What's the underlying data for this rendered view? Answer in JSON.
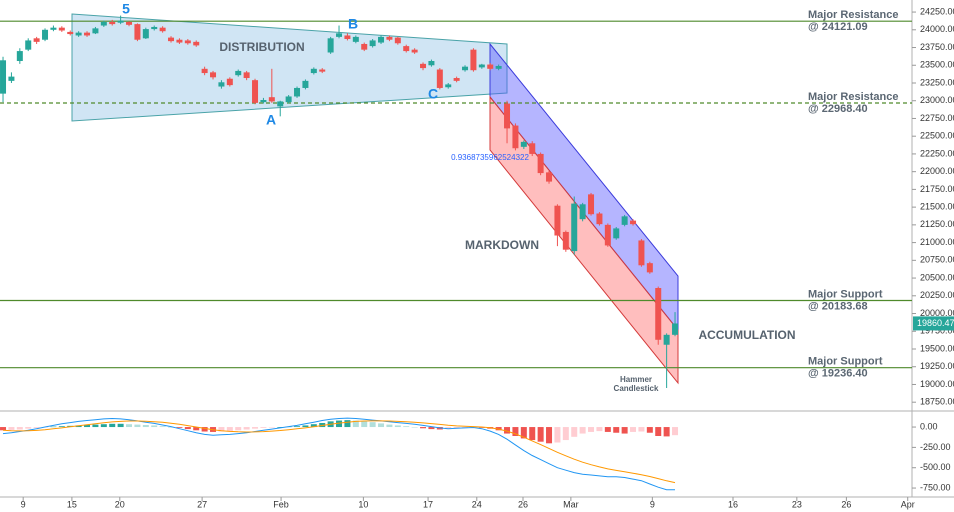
{
  "chart_data": [
    {
      "type": "candlestick",
      "xlim": [
        -0.36,
        108.21
      ],
      "ylim": [
        18640,
        24420
      ],
      "grid": false,
      "up_color": "#26a69a",
      "down_color": "#ef5350",
      "level_color": "#4f8a2b",
      "yticks": [
        {
          "value": 18750,
          "label": "18750.00"
        },
        {
          "value": 19000,
          "label": "19000.00"
        },
        {
          "value": 19250,
          "label": "19250.00"
        },
        {
          "value": 19500,
          "label": "19500.00"
        },
        {
          "value": 19750,
          "label": "19750.00"
        },
        {
          "value": 20000,
          "label": "20000.00"
        },
        {
          "value": 20250,
          "label": "20250.00"
        },
        {
          "value": 20500,
          "label": "20500.00"
        },
        {
          "value": 20750,
          "label": "20750.00"
        },
        {
          "value": 21000,
          "label": "21000.00"
        },
        {
          "value": 21250,
          "label": "21250.00"
        },
        {
          "value": 21500,
          "label": "21500.00"
        },
        {
          "value": 21750,
          "label": "21750.00"
        },
        {
          "value": 22000,
          "label": "22000.00"
        },
        {
          "value": 22250,
          "label": "22250.00"
        },
        {
          "value": 22500,
          "label": "22500.00"
        },
        {
          "value": 22750,
          "label": "22750.00"
        },
        {
          "value": 23000,
          "label": "23000.00"
        },
        {
          "value": 23250,
          "label": "23250.00"
        },
        {
          "value": 23500,
          "label": "23500.00"
        },
        {
          "value": 23750,
          "label": "23750.00"
        },
        {
          "value": 24000,
          "label": "24000.00"
        },
        {
          "value": 24250,
          "label": "24250.00"
        }
      ],
      "x": [
        0,
        1,
        2,
        3,
        4,
        5,
        6,
        7,
        8,
        9,
        10,
        11,
        12,
        13,
        14,
        15,
        16,
        17,
        18,
        19,
        20,
        21,
        22,
        23,
        24,
        25,
        26,
        27,
        28,
        29,
        30,
        31,
        32,
        33,
        34,
        35,
        36,
        37,
        38,
        39,
        40,
        41,
        42,
        43,
        44,
        45,
        46,
        47,
        48,
        49,
        50,
        51,
        52,
        53,
        54,
        55,
        56,
        57,
        58,
        59,
        60,
        61,
        62,
        63,
        64,
        65,
        66,
        67,
        68,
        69,
        70,
        71,
        72,
        73,
        74,
        75,
        76,
        77,
        78,
        79,
        80
      ],
      "open": [
        23100,
        23280,
        23560,
        23720,
        23880,
        23860,
        24000,
        24030,
        23970,
        23920,
        23960,
        23950,
        24060,
        24110,
        24100,
        24110,
        24080,
        23880,
        24010,
        24030,
        23890,
        23860,
        23850,
        23830,
        23450,
        23400,
        23200,
        23310,
        23360,
        23400,
        23290,
        22980,
        23050,
        22920,
        22980,
        23060,
        23180,
        23390,
        23440,
        23680,
        23900,
        23920,
        23830,
        23800,
        23770,
        23820,
        23900,
        23890,
        23770,
        23720,
        23520,
        23500,
        23440,
        23190,
        23320,
        23430,
        23720,
        23470,
        23510,
        23450,
        22960,
        22650,
        22350,
        22400,
        22250,
        21990,
        21520,
        21150,
        20880,
        21330,
        21680,
        21410,
        21250,
        21060,
        21250,
        21310,
        21030,
        20710,
        20360,
        19560,
        19700
      ],
      "high": [
        23620,
        23400,
        23740,
        23880,
        23900,
        24020,
        24060,
        24050,
        23990,
        23980,
        23980,
        24040,
        24130,
        24140,
        24200,
        24120,
        24090,
        24030,
        24060,
        24050,
        23910,
        23880,
        23870,
        23850,
        23480,
        23420,
        23290,
        23330,
        23440,
        23420,
        23310,
        23040,
        23450,
        23000,
        23080,
        23200,
        23300,
        23470,
        23460,
        23900,
        24060,
        23950,
        23920,
        23820,
        23870,
        23920,
        23920,
        23900,
        23790,
        23740,
        23540,
        23580,
        23460,
        23250,
        23340,
        23500,
        23740,
        23520,
        23530,
        23510,
        23000,
        22680,
        22440,
        22430,
        22270,
        22010,
        21540,
        21170,
        21650,
        21560,
        21700,
        21430,
        21270,
        21220,
        21390,
        21330,
        21050,
        20730,
        20380,
        19720,
        20020
      ],
      "low": [
        22980,
        23250,
        23520,
        23700,
        23800,
        23840,
        23980,
        23970,
        23920,
        23900,
        23900,
        23940,
        24040,
        24060,
        24080,
        24050,
        23840,
        23870,
        23990,
        23960,
        23820,
        23800,
        23790,
        23760,
        23360,
        23300,
        23170,
        23200,
        23340,
        23290,
        22950,
        22960,
        22970,
        22780,
        22960,
        23040,
        23160,
        23370,
        23390,
        23660,
        23880,
        23850,
        23810,
        23700,
        23750,
        23800,
        23840,
        23790,
        23680,
        23660,
        23430,
        23480,
        23160,
        23170,
        23260,
        23410,
        23410,
        23450,
        23430,
        23430,
        22400,
        22300,
        22320,
        22220,
        21950,
        21830,
        20950,
        20870,
        20830,
        21300,
        21380,
        21240,
        20940,
        21040,
        21230,
        21240,
        20660,
        20560,
        19560,
        18950,
        19680
      ],
      "close": [
        23570,
        23340,
        23700,
        23850,
        23830,
        24000,
        24030,
        23990,
        23940,
        23960,
        23920,
        24020,
        24110,
        24080,
        24130,
        24070,
        23860,
        24010,
        24040,
        23980,
        23840,
        23820,
        23810,
        23780,
        23390,
        23330,
        23260,
        23220,
        23420,
        23320,
        22970,
        23010,
        22990,
        22990,
        23060,
        23180,
        23280,
        23450,
        23410,
        23880,
        23950,
        23870,
        23900,
        23720,
        23850,
        23900,
        23860,
        23810,
        23700,
        23680,
        23460,
        23560,
        23180,
        23230,
        23280,
        23480,
        23430,
        23510,
        23450,
        23490,
        22610,
        22330,
        22420,
        22250,
        21980,
        21860,
        21100,
        20900,
        21550,
        21540,
        21400,
        21260,
        20960,
        21200,
        21370,
        21260,
        20680,
        20580,
        19630,
        19700,
        19860
      ],
      "last_price": 19860.47,
      "levels": [
        {
          "name": "Major Resistance",
          "label": "@ 24121.09",
          "value": 24121.09,
          "style": "solid"
        },
        {
          "name": "Major Resistance",
          "label": "@ 22968.40",
          "value": 22968.4,
          "style": "dashed"
        },
        {
          "name": "Major Support",
          "label": "@ 20183.68",
          "value": 20183.68,
          "style": "solid"
        },
        {
          "name": "Major Support",
          "label": "@ 19236.40",
          "value": 19236.4,
          "style": "solid"
        }
      ],
      "annotations": [
        "5",
        "B",
        "A",
        "C",
        "DISTRIBUTION",
        "MARKDOWN",
        "ACCUMULATION",
        "0.9368735962524322",
        "Hammer",
        "Candlestick"
      ]
    },
    {
      "type": "macd",
      "xlim": [
        -0.36,
        108.21
      ],
      "ylim": [
        -860,
        185
      ],
      "grid": false,
      "yticks": [
        {
          "value": 0,
          "label": "0.00"
        },
        {
          "value": -250,
          "label": "-250.00"
        },
        {
          "value": -500,
          "label": "-500.00"
        },
        {
          "value": -750,
          "label": "-750.00"
        }
      ],
      "xticks": [
        {
          "value": 2.4,
          "label": "9"
        },
        {
          "value": 8.2,
          "label": "15"
        },
        {
          "value": 13.9,
          "label": "20"
        },
        {
          "value": 23.7,
          "label": "27"
        },
        {
          "value": 33.1,
          "label": "Feb"
        },
        {
          "value": 42.9,
          "label": "10"
        },
        {
          "value": 50.6,
          "label": "17"
        },
        {
          "value": 56.4,
          "label": "24"
        },
        {
          "value": 61.9,
          "label": "26"
        },
        {
          "value": 67.6,
          "label": "Mar"
        },
        {
          "value": 77.3,
          "label": "9"
        },
        {
          "value": 86.9,
          "label": "16"
        },
        {
          "value": 94.5,
          "label": "23"
        },
        {
          "value": 100.4,
          "label": "26"
        },
        {
          "value": 107.7,
          "label": "Apr"
        }
      ],
      "x": [
        0,
        1,
        2,
        3,
        4,
        5,
        6,
        7,
        8,
        9,
        10,
        11,
        12,
        13,
        14,
        15,
        16,
        17,
        18,
        19,
        20,
        21,
        22,
        23,
        24,
        25,
        26,
        27,
        28,
        29,
        30,
        31,
        32,
        33,
        34,
        35,
        36,
        37,
        38,
        39,
        40,
        41,
        42,
        43,
        44,
        45,
        46,
        47,
        48,
        49,
        50,
        51,
        52,
        53,
        54,
        55,
        56,
        57,
        58,
        59,
        60,
        61,
        62,
        63,
        64,
        65,
        66,
        67,
        68,
        69,
        70,
        71,
        72,
        73,
        74,
        75,
        76,
        77,
        78,
        79,
        80
      ],
      "histogram_colors": [
        "#26a69a",
        "#b2dfdb",
        "#ef5350",
        "#ffcdd2"
      ],
      "histogram": [
        -40,
        -35,
        -30,
        -20,
        -10,
        -5,
        5,
        10,
        15,
        20,
        25,
        30,
        35,
        40,
        40,
        35,
        30,
        25,
        20,
        10,
        0,
        -10,
        -25,
        -40,
        -55,
        -60,
        -55,
        -50,
        -40,
        -30,
        -20,
        -10,
        -5,
        0,
        5,
        10,
        20,
        35,
        50,
        70,
        80,
        85,
        80,
        70,
        60,
        45,
        30,
        20,
        10,
        0,
        -15,
        -25,
        -30,
        -25,
        -15,
        -10,
        -5,
        -10,
        -20,
        -40,
        -80,
        -110,
        -140,
        -160,
        -180,
        -200,
        -190,
        -160,
        -120,
        -80,
        -60,
        -50,
        -60,
        -70,
        -80,
        -60,
        -55,
        -70,
        -110,
        -115,
        -100
      ],
      "series": [
        {
          "color": "#2196f3",
          "values": [
            -80,
            -70,
            -55,
            -40,
            -20,
            0,
            20,
            40,
            55,
            70,
            80,
            90,
            100,
            105,
            100,
            90,
            75,
            60,
            45,
            25,
            5,
            -20,
            -45,
            -70,
            -90,
            -100,
            -95,
            -90,
            -80,
            -70,
            -55,
            -40,
            -25,
            -10,
            5,
            20,
            40,
            60,
            80,
            95,
            105,
            110,
            105,
            95,
            85,
            75,
            65,
            55,
            45,
            35,
            20,
            5,
            -10,
            -20,
            -15,
            -10,
            -5,
            -20,
            -50,
            -90,
            -150,
            -220,
            -290,
            -350,
            -400,
            -450,
            -500,
            -530,
            -560,
            -580,
            -590,
            -600,
            -610,
            -610,
            -620,
            -640,
            -660,
            -700,
            -740,
            -770,
            -770
          ]
        },
        {
          "color": "#ff9800",
          "values": [
            -40,
            -45,
            -47,
            -46,
            -41,
            -33,
            -22,
            -10,
            3,
            16,
            29,
            41,
            53,
            63,
            70,
            74,
            74,
            71,
            66,
            58,
            47,
            34,
            18,
            0,
            -17,
            -33,
            -45,
            -54,
            -59,
            -61,
            -60,
            -56,
            -50,
            -42,
            -33,
            -22,
            -10,
            4,
            19,
            34,
            48,
            60,
            69,
            74,
            76,
            76,
            74,
            70,
            65,
            59,
            51,
            42,
            32,
            22,
            14,
            9,
            6,
            1,
            -9,
            -25,
            -50,
            -84,
            -125,
            -170,
            -216,
            -263,
            -310,
            -354,
            -395,
            -432,
            -463,
            -490,
            -514,
            -533,
            -550,
            -568,
            -586,
            -608,
            -634,
            -661,
            -683
          ]
        }
      ]
    }
  ]
}
